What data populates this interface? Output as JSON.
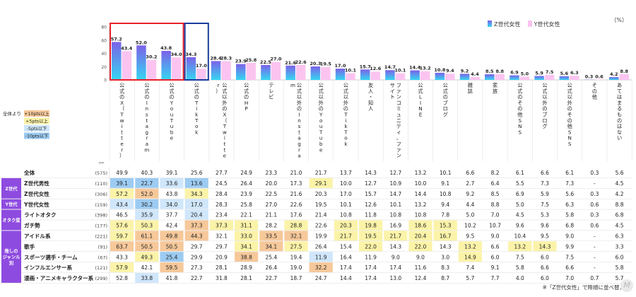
{
  "unit_label": "（%）",
  "legend": {
    "z": "Z世代女性",
    "y": "Y世代女性"
  },
  "colors": {
    "z_top": "#7b61e8",
    "z_bottom": "#35d6f2",
    "y_bar": "#fbc4f0",
    "highlight_red": "#e8212a",
    "highlight_blue": "#1a3c9c",
    "group_tag": "#8e4be0",
    "heat_up10": "#f6c89a",
    "heat_up5": "#fbf3a8",
    "heat_dn5": "#cfe6fb",
    "heat_dn10": "#9ccbf2"
  },
  "note": "※「Z世代女性」で降順に並べ替え",
  "chart_data": {
    "type": "bar",
    "ylim": [
      0,
      80
    ],
    "yticks": [
      0,
      20,
      40,
      60,
      80
    ],
    "categories": [
      "公式のX（Twitter）",
      "公式のInstagram",
      "公式のYouTube",
      "公式のTikTok",
      "公式以外のX（Twitter）",
      "公式のHP",
      "テレビ",
      "公式以外のInstagram",
      "公式以外のYouTube",
      "公式以外のTikTok",
      "友人・知人",
      "ファンコミュニティ、ファンサイト",
      "公式LINE",
      "公式のブログ",
      "雑誌",
      "家族",
      "公式のその他SNS",
      "公式以外のブログ",
      "公式以外のその他SNS",
      "その他",
      "あてはまるものはない"
    ],
    "series": [
      {
        "name": "Z世代女性",
        "values": [
          57.2,
          52.0,
          43.8,
          34.3,
          28.4,
          23.9,
          22.5,
          21.6,
          20.3,
          17.0,
          15.7,
          14.7,
          14.4,
          10.8,
          9.2,
          8.5,
          6.9,
          5.9,
          5.6,
          0.3,
          4.2
        ]
      },
      {
        "name": "Y世代女性",
        "values": [
          43.4,
          30.2,
          34.0,
          17.0,
          28.3,
          25.8,
          27.0,
          22.6,
          19.5,
          10.1,
          12.6,
          10.1,
          13.2,
          9.4,
          4.4,
          8.8,
          5.0,
          7.5,
          6.3,
          0.6,
          8.8
        ]
      }
    ],
    "highlight_red": [
      0,
      2
    ],
    "highlight_blue": [
      3,
      3
    ]
  },
  "heat_legend": {
    "title": "全体より",
    "items": [
      {
        "label": "+10pts以上",
        "key": "heat_up10"
      },
      {
        "label": "+5pts以上",
        "key": "heat_up5"
      },
      {
        "label": "-5pts以下",
        "key": "heat_dn5"
      },
      {
        "label": "-10pts以下",
        "key": "heat_dn10"
      }
    ]
  },
  "n_header": "n=",
  "table": [
    {
      "group": "",
      "label": "全体",
      "n": "(575)",
      "vals": [
        "49.9",
        "40.3",
        "39.1",
        "25.6",
        "27.7",
        "24.9",
        "23.3",
        "21.0",
        "21.7",
        "13.7",
        "14.3",
        "12.7",
        "13.2",
        "10.1",
        "6.6",
        "8.2",
        "6.1",
        "6.6",
        "6.1",
        "0.3",
        "5.6"
      ],
      "hl": []
    },
    {
      "group": "Z世代",
      "label": "Z世代男性",
      "n": "(110)",
      "vals": [
        "39.1",
        "22.7",
        "33.6",
        "13.6",
        "24.5",
        "26.4",
        "20.0",
        "17.3",
        "29.1",
        "10.0",
        "12.7",
        "10.9",
        "10.0",
        "9.1",
        "2.7",
        "6.4",
        "5.5",
        "7.3",
        "7.3",
        "-",
        "4.5"
      ],
      "hl": [
        [
          0,
          "heat_dn10"
        ],
        [
          1,
          "heat_dn10"
        ],
        [
          2,
          "heat_dn5"
        ],
        [
          3,
          "heat_dn10"
        ],
        [
          8,
          "heat_up5"
        ]
      ]
    },
    {
      "group": "",
      "label": "Z世代女性",
      "n": "(306)",
      "vals": [
        "57.2",
        "52.0",
        "43.8",
        "34.3",
        "28.4",
        "23.9",
        "22.5",
        "21.6",
        "20.3",
        "17.0",
        "15.7",
        "14.7",
        "14.4",
        "10.8",
        "9.2",
        "8.5",
        "6.9",
        "5.9",
        "5.6",
        "0.3",
        "4.2"
      ],
      "hl": [
        [
          0,
          "heat_up5"
        ],
        [
          1,
          "heat_up10"
        ],
        [
          3,
          "heat_up5"
        ]
      ]
    },
    {
      "group": "Y世代",
      "label": "Y世代女性",
      "n": "(159)",
      "vals": [
        "43.4",
        "30.2",
        "34.0",
        "17.0",
        "28.3",
        "25.8",
        "27.0",
        "22.6",
        "19.5",
        "10.1",
        "12.6",
        "10.1",
        "13.2",
        "9.4",
        "4.4",
        "8.8",
        "5.0",
        "7.5",
        "6.3",
        "0.6",
        "8.8"
      ],
      "hl": [
        [
          0,
          "heat_dn5"
        ],
        [
          1,
          "heat_dn10"
        ],
        [
          2,
          "heat_dn5"
        ],
        [
          3,
          "heat_dn5"
        ]
      ]
    },
    {
      "group": "オタク度",
      "label": "ライトオタク",
      "n": "(398)",
      "vals": [
        "46.5",
        "35.9",
        "37.7",
        "20.4",
        "23.4",
        "22.1",
        "21.1",
        "17.6",
        "21.4",
        "10.8",
        "11.8",
        "10.8",
        "10.8",
        "7.8",
        "5.0",
        "7.0",
        "4.5",
        "5.3",
        "5.8",
        "0.3",
        "6.8"
      ],
      "hl": [
        [
          1,
          "heat_dn5"
        ],
        [
          3,
          "heat_dn5"
        ]
      ]
    },
    {
      "group": "",
      "label": "ガチ勢",
      "n": "(177)",
      "vals": [
        "57.6",
        "50.3",
        "42.4",
        "37.3",
        "37.3",
        "31.1",
        "28.2",
        "28.8",
        "22.6",
        "20.3",
        "19.8",
        "16.9",
        "18.6",
        "15.3",
        "10.2",
        "10.7",
        "9.6",
        "9.6",
        "6.8",
        "0.6",
        "4.5"
      ],
      "hl": [
        [
          0,
          "heat_up5"
        ],
        [
          1,
          "heat_up5"
        ],
        [
          3,
          "heat_up10"
        ],
        [
          4,
          "heat_up5"
        ],
        [
          5,
          "heat_up5"
        ],
        [
          7,
          "heat_up5"
        ],
        [
          9,
          "heat_up5"
        ],
        [
          10,
          "heat_up5"
        ],
        [
          12,
          "heat_up5"
        ],
        [
          13,
          "heat_up5"
        ]
      ]
    },
    {
      "group": "推しのジャンル別",
      "label": "アイドル系",
      "n": "(221)",
      "vals": [
        "59.7",
        "61.1",
        "49.8",
        "44.3",
        "32.1",
        "33.0",
        "33.5",
        "32.1",
        "19.9",
        "21.7",
        "19.5",
        "21.7",
        "20.4",
        "16.7",
        "9.5",
        "9.0",
        "10.4",
        "9.5",
        "9.0",
        "-",
        "6.3"
      ],
      "hl": [
        [
          0,
          "heat_up5"
        ],
        [
          1,
          "heat_up10"
        ],
        [
          2,
          "heat_up10"
        ],
        [
          3,
          "heat_up10"
        ],
        [
          5,
          "heat_up5"
        ],
        [
          6,
          "heat_up10"
        ],
        [
          7,
          "heat_up10"
        ],
        [
          9,
          "heat_up5"
        ],
        [
          10,
          "heat_up5"
        ],
        [
          11,
          "heat_up5"
        ],
        [
          12,
          "heat_up5"
        ],
        [
          13,
          "heat_up5"
        ]
      ]
    },
    {
      "group": "",
      "label": "歌手",
      "n": "(91)",
      "vals": [
        "63.7",
        "50.5",
        "50.5",
        "29.7",
        "29.7",
        "34.1",
        "34.1",
        "27.5",
        "26.4",
        "15.4",
        "22.0",
        "14.3",
        "22.0",
        "14.3",
        "13.2",
        "6.6",
        "13.2",
        "14.3",
        "9.9",
        "-",
        "3.3"
      ],
      "hl": [
        [
          0,
          "heat_up10"
        ],
        [
          1,
          "heat_up10"
        ],
        [
          2,
          "heat_up10"
        ],
        [
          5,
          "heat_up5"
        ],
        [
          6,
          "heat_up10"
        ],
        [
          7,
          "heat_up5"
        ],
        [
          10,
          "heat_up5"
        ],
        [
          12,
          "heat_up5"
        ],
        [
          14,
          "heat_up5"
        ],
        [
          16,
          "heat_up5"
        ],
        [
          17,
          "heat_up5"
        ]
      ]
    },
    {
      "group": "",
      "label": "スポーツ選手・チーム",
      "n": "(67)",
      "vals": [
        "43.3",
        "49.3",
        "25.4",
        "29.9",
        "20.9",
        "38.8",
        "25.4",
        "19.4",
        "11.9",
        "16.4",
        "11.9",
        "9.0",
        "9.0",
        "3.0",
        "14.9",
        "6.0",
        "7.5",
        "6.0",
        "7.5",
        "-",
        "6.0"
      ],
      "hl": [
        [
          1,
          "heat_up5"
        ],
        [
          2,
          "heat_dn10"
        ],
        [
          5,
          "heat_up10"
        ],
        [
          8,
          "heat_dn5"
        ],
        [
          14,
          "heat_up5"
        ]
      ]
    },
    {
      "group": "",
      "label": "インフルエンサー系",
      "n": "(121)",
      "vals": [
        "57.9",
        "42.1",
        "59.5",
        "27.3",
        "28.1",
        "28.9",
        "26.4",
        "19.0",
        "32.2",
        "17.4",
        "17.4",
        "17.4",
        "11.6",
        "8.3",
        "7.4",
        "9.1",
        "5.8",
        "6.6",
        "6.6",
        "-",
        "5.8"
      ],
      "hl": [
        [
          0,
          "heat_up5"
        ],
        [
          2,
          "heat_up10"
        ],
        [
          8,
          "heat_up10"
        ]
      ]
    },
    {
      "group": "",
      "label": "漫画・アニメキャラクター系",
      "n": "(299)",
      "vals": [
        "52.8",
        "33.8",
        "41.8",
        "22.7",
        "31.8",
        "28.1",
        "22.7",
        "18.7",
        "24.7",
        "14.4",
        "17.4",
        "13.0",
        "12.4",
        "8.7",
        "5.7",
        "7.7",
        "4.0",
        "6.0",
        "7.0",
        "0.7",
        "5.7"
      ],
      "hl": [
        [
          1,
          "heat_dn5"
        ]
      ]
    }
  ]
}
